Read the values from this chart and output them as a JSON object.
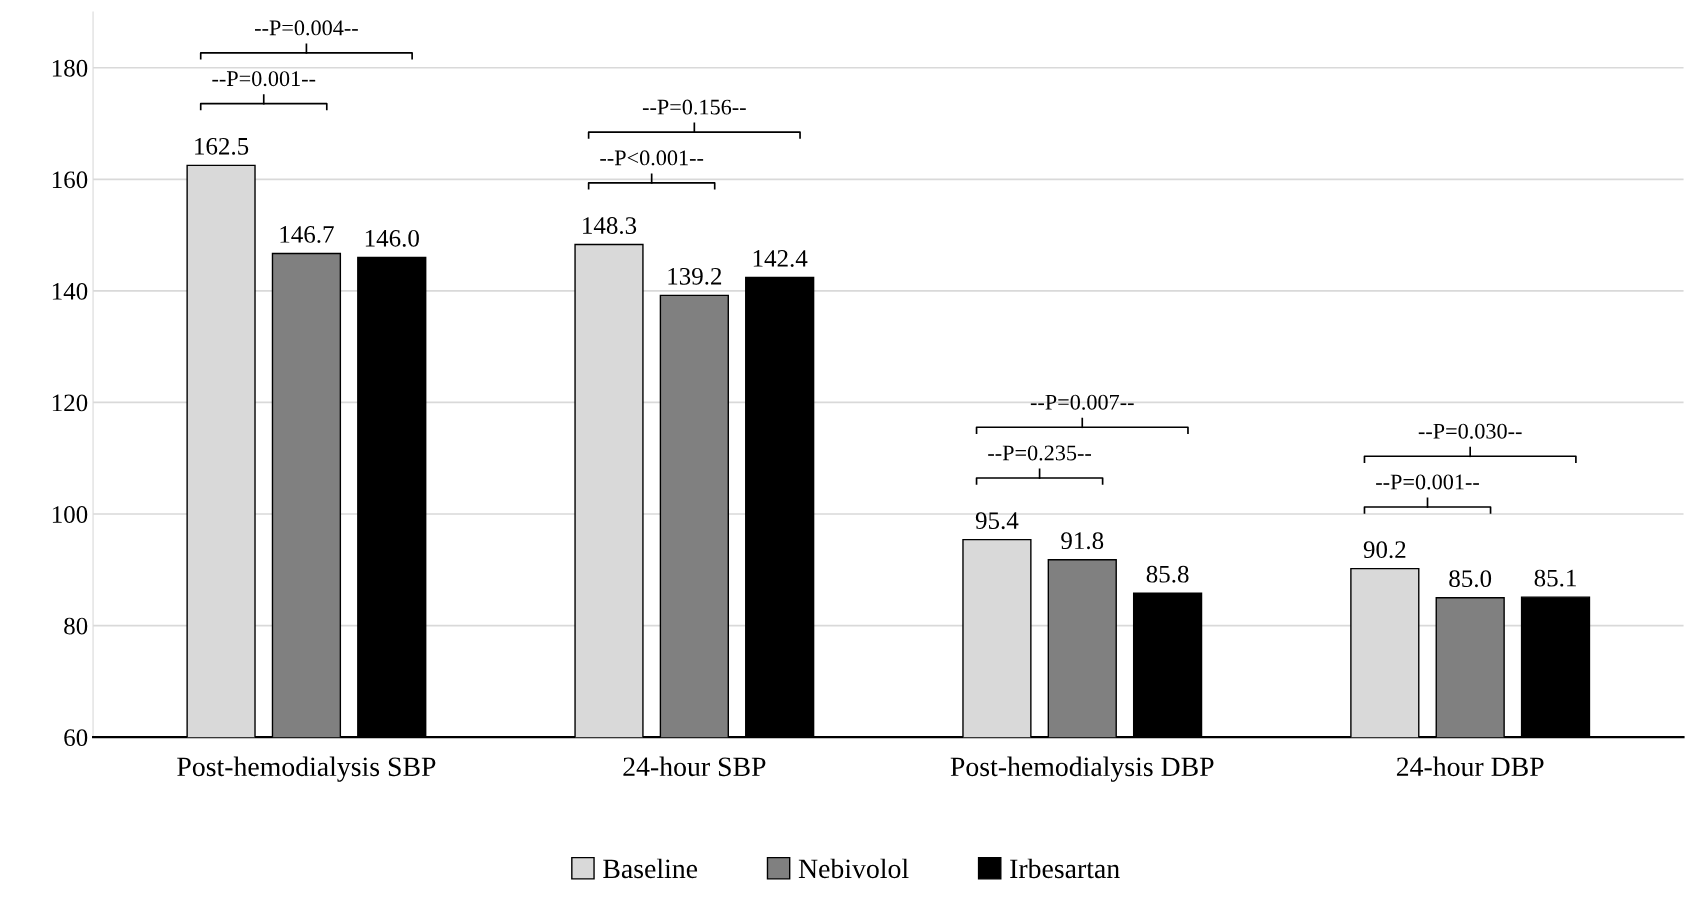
{
  "chart_data": {
    "type": "bar",
    "categories": [
      "Post-hemodialysis SBP",
      "24-hour SBP",
      "Post-hemodialysis DBP",
      "24-hour DBP"
    ],
    "series": [
      {
        "name": "Baseline",
        "color": "#d9d9d9",
        "values": [
          162.5,
          148.3,
          95.4,
          90.2
        ]
      },
      {
        "name": "Nebivolol",
        "color": "#808080",
        "values": [
          146.7,
          139.2,
          91.8,
          85.0
        ]
      },
      {
        "name": "Irbesartan",
        "color": "#000000",
        "values": [
          146.0,
          142.4,
          85.8,
          85.1
        ]
      }
    ],
    "value_labels": [
      [
        "162.5",
        "148.3",
        "95.4",
        "90.2"
      ],
      [
        "146.7",
        "139.2",
        "91.8",
        "85.0"
      ],
      [
        "146.0",
        "142.4",
        "85.8",
        "85.1"
      ]
    ],
    "annotations": [
      "--P=0.001--",
      "--P=0.004--",
      "--P<0.001--",
      "--P=0.156--",
      "--P=0.235--",
      "--P=0.007--",
      "--P=0.001--",
      "--P=0.030--"
    ],
    "ylim": [
      60,
      190
    ],
    "yticks": [
      60,
      80,
      100,
      120,
      140,
      160,
      180
    ],
    "grid": "y",
    "legend": "bottom"
  }
}
